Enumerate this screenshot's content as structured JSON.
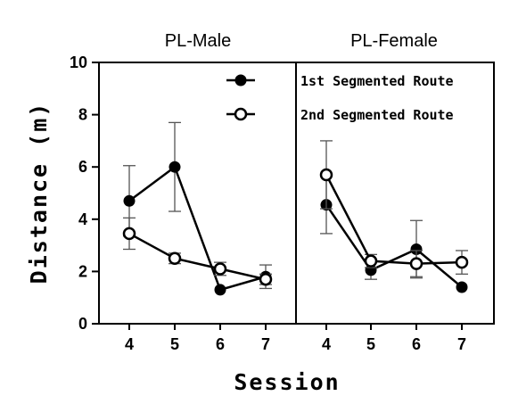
{
  "chart_data": {
    "type": "line",
    "xlabel": "Session",
    "ylabel": "Distance (m)",
    "ylim": [
      0,
      10
    ],
    "yticks": [
      0,
      2,
      4,
      6,
      8,
      10
    ],
    "categories": [
      "4",
      "5",
      "6",
      "7"
    ],
    "legend": {
      "placement": "top-right",
      "entries": [
        "1st Segmented Route",
        "2nd Segmented Route"
      ]
    },
    "panels": [
      {
        "title": "PL-Male",
        "series": [
          {
            "name": "1st Segmented Route",
            "marker": "filled-circle",
            "values": [
              4.7,
              6.0,
              1.3,
              1.8
            ],
            "error": [
              1.35,
              1.7,
              0.0,
              0.45
            ]
          },
          {
            "name": "2nd Segmented Route",
            "marker": "open-circle",
            "values": [
              3.45,
              2.5,
              2.1,
              1.7
            ],
            "error": [
              0.6,
              0.2,
              0.25,
              0.2
            ]
          }
        ]
      },
      {
        "title": "PL-Female",
        "series": [
          {
            "name": "1st Segmented Route",
            "marker": "filled-circle",
            "values": [
              4.55,
              2.05,
              2.85,
              1.4
            ],
            "error": [
              1.1,
              0.35,
              1.1,
              0.0
            ]
          },
          {
            "name": "2nd Segmented Route",
            "marker": "open-circle",
            "values": [
              5.7,
              2.4,
              2.3,
              2.35
            ],
            "error": [
              1.3,
              0.25,
              0.5,
              0.45
            ]
          }
        ]
      }
    ]
  }
}
